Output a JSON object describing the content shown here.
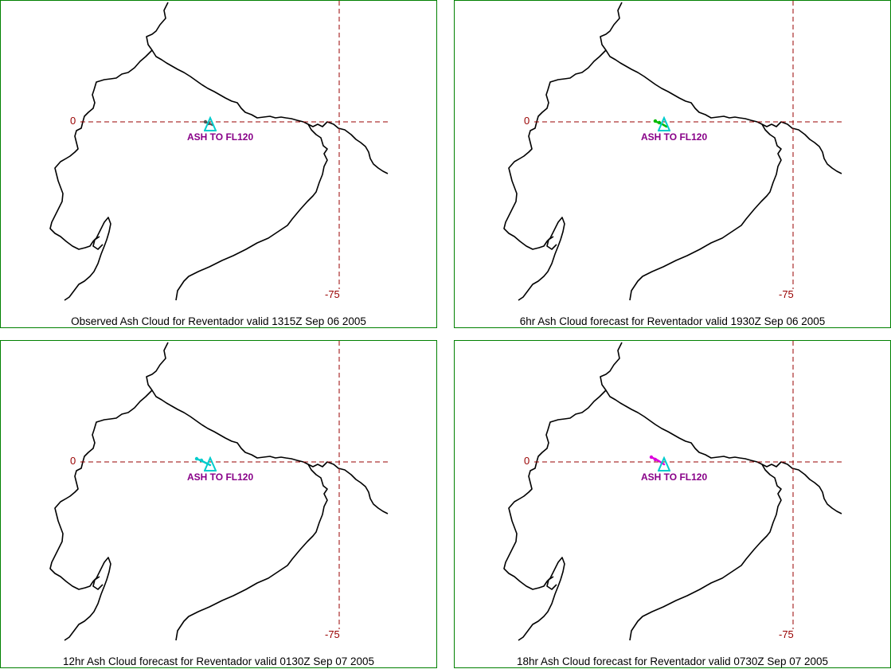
{
  "panels": [
    {
      "caption": "Observed Ash Cloud for Reventador valid 1315Z Sep 06 2005",
      "lat_label": "0",
      "lon_label": "-75",
      "ash_label": "ASH TO FL120",
      "plume_color": "#555555"
    },
    {
      "caption": "6hr Ash Cloud forecast for Reventador valid 1930Z Sep 06 2005",
      "lat_label": "0",
      "lon_label": "-75",
      "ash_label": "ASH TO FL120",
      "plume_color": "#00bb00"
    },
    {
      "caption": "12hr Ash Cloud forecast for Reventador valid 0130Z Sep 07 2005",
      "lat_label": "0",
      "lon_label": "-75",
      "ash_label": "ASH TO FL120",
      "plume_color": "#00cccc"
    },
    {
      "caption": "18hr Ash Cloud forecast for Reventador valid 0730Z Sep 07 2005",
      "lat_label": "0",
      "lon_label": "-75",
      "ash_label": "ASH TO FL120",
      "plume_color": "#dd00dd"
    }
  ],
  "colors": {
    "frame": "#008000",
    "gridline": "#990000",
    "coastline": "#000000",
    "volcano_marker": "#00cccc",
    "ash_label": "#880088"
  }
}
